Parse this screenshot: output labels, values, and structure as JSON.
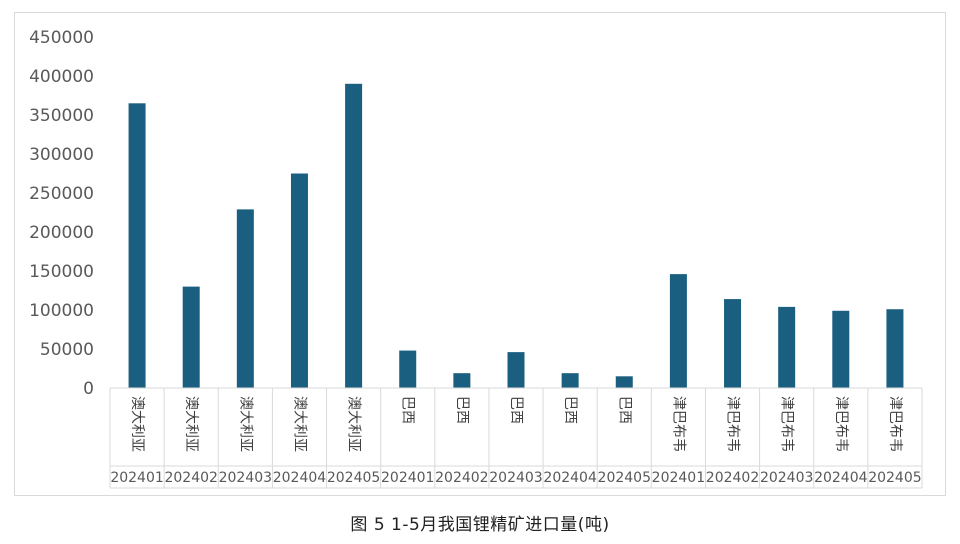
{
  "caption": "图 5 1-5月我国锂精矿进口量(吨)",
  "colors": {
    "bar": "#1b5f80",
    "axis": "#d9d9d9",
    "tick_text": "#595959"
  },
  "chart_data": {
    "type": "bar",
    "title": "",
    "xlabel": "",
    "ylabel": "",
    "ylim": [
      0,
      450000
    ],
    "yticks": [
      0,
      50000,
      100000,
      150000,
      200000,
      250000,
      300000,
      350000,
      400000,
      450000
    ],
    "ytick_labels": [
      "0",
      "50000",
      "100000",
      "150000",
      "200000",
      "250000",
      "300000",
      "350000",
      "400000",
      "450000"
    ],
    "grid": false,
    "legend": "none",
    "categories": [
      {
        "country": "澳大利亚",
        "month": "202401"
      },
      {
        "country": "澳大利亚",
        "month": "202402"
      },
      {
        "country": "澳大利亚",
        "month": "202403"
      },
      {
        "country": "澳大利亚",
        "month": "202404"
      },
      {
        "country": "澳大利亚",
        "month": "202405"
      },
      {
        "country": "巴西",
        "month": "202401"
      },
      {
        "country": "巴西",
        "month": "202402"
      },
      {
        "country": "巴西",
        "month": "202403"
      },
      {
        "country": "巴西",
        "month": "202404"
      },
      {
        "country": "巴西",
        "month": "202405"
      },
      {
        "country": "津巴布韦",
        "month": "202401"
      },
      {
        "country": "津巴布韦",
        "month": "202402"
      },
      {
        "country": "津巴布韦",
        "month": "202403"
      },
      {
        "country": "津巴布韦",
        "month": "202404"
      },
      {
        "country": "津巴布韦",
        "month": "202405"
      }
    ],
    "values": [
      365000,
      130000,
      229000,
      275000,
      390000,
      48000,
      19000,
      46000,
      19000,
      15000,
      146000,
      114000,
      104000,
      99000,
      101000
    ]
  }
}
